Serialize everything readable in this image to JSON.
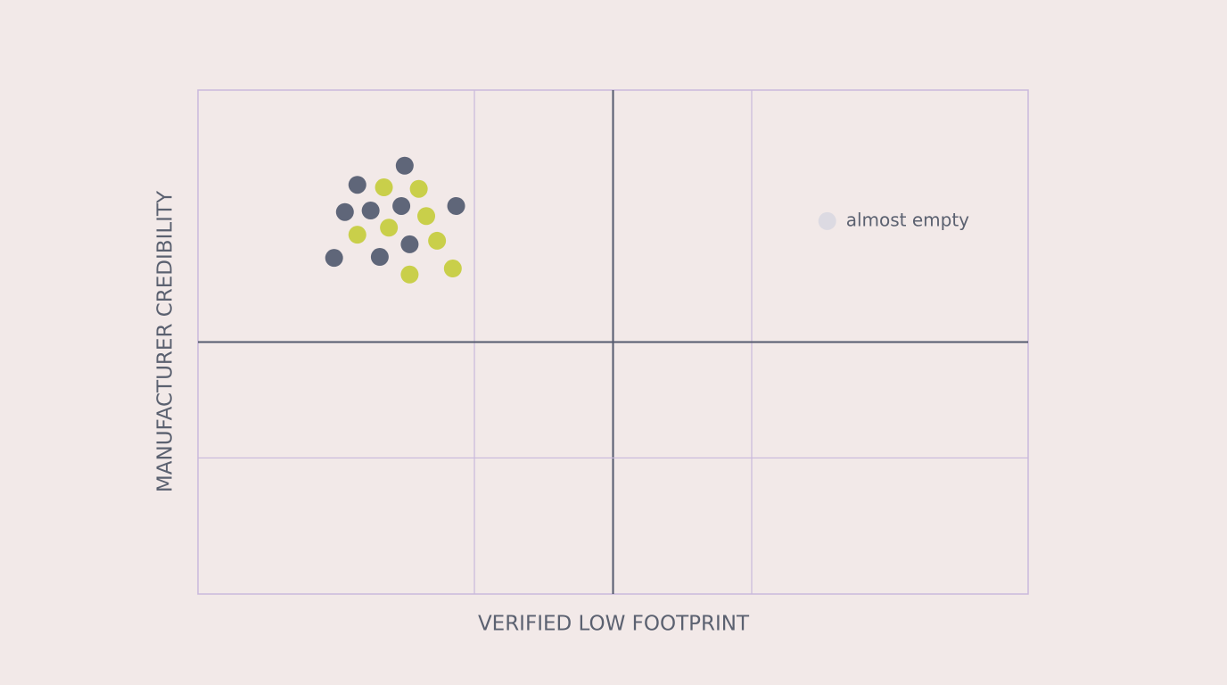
{
  "chart_data": {
    "type": "scatter",
    "xlabel": "VERIFIED LOW FOOTPRINT",
    "ylabel": "MANUFACTURER CREDIBILITY",
    "xlim": [
      0,
      100
    ],
    "ylim": [
      0,
      100
    ],
    "xticks": [
      33.3,
      50,
      66.7
    ],
    "yticks": [
      27,
      50
    ],
    "grid": true,
    "series": [
      {
        "color": "#5f6679",
        "x": [
          24.9,
          19.2,
          17.7,
          20.8,
          24.5,
          31.1,
          25.5,
          21.9,
          16.4
        ],
        "values": [
          85.0,
          81.2,
          75.8,
          76.1,
          77.0,
          77.0,
          69.4,
          66.9,
          66.7
        ]
      },
      {
        "color": "#c9cf4a",
        "x": [
          22.4,
          26.6,
          27.5,
          19.2,
          23.0,
          28.8,
          25.5,
          30.7
        ],
        "values": [
          80.7,
          80.4,
          75.0,
          71.3,
          72.7,
          70.1,
          63.4,
          64.6
        ]
      }
    ],
    "annotations": [
      {
        "text": "almost empty",
        "x": 75.8,
        "y": 74.0,
        "color": "#dcdae2"
      }
    ]
  }
}
